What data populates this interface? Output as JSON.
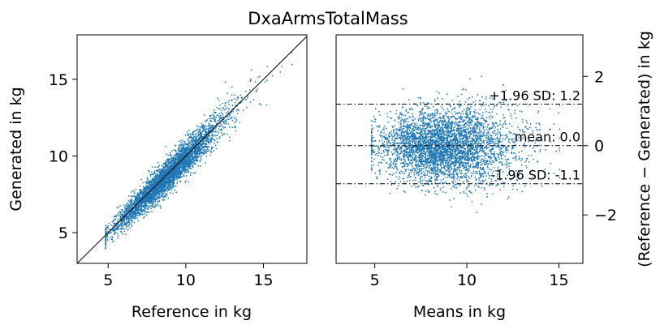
{
  "title": "DxaArmsTotalMass",
  "colors": {
    "points": "#1f77b4",
    "line": "#000000",
    "axis": "#000000"
  },
  "chart_data": [
    {
      "type": "scatter",
      "xlabel": "Reference in kg",
      "ylabel": "Generated in kg",
      "xlim": [
        3,
        17.8
      ],
      "ylim": [
        3,
        17.9
      ],
      "xticks": [
        5,
        10,
        15
      ],
      "yticks": [
        5,
        10,
        15
      ],
      "identity_line": true,
      "point_cloud": {
        "n": 4200,
        "x_mean": 8.6,
        "x_sd": 2.0,
        "x_min": 4.8,
        "x_max": 16.8,
        "resid_sd": 0.55
      }
    },
    {
      "type": "scatter",
      "xlabel": "Means in kg",
      "ylabel": "(Reference − Generated) in kg",
      "xlim": [
        2.9,
        16.3
      ],
      "ylim": [
        -3.4,
        3.2
      ],
      "xticks": [
        5,
        10,
        15
      ],
      "yticks": [
        -2,
        0,
        2
      ],
      "yaxis_side": "right",
      "point_cloud": {
        "n": 4200,
        "x_mean": 8.6,
        "x_sd": 2.0,
        "x_min": 4.8,
        "x_max": 15.0,
        "y_sd": 0.58
      },
      "reference_lines": [
        {
          "y": 1.2,
          "label": "+1.96 SD: 1.2"
        },
        {
          "y": 0.0,
          "label": "mean: 0.0"
        },
        {
          "y": -1.1,
          "label": "-1.96 SD: -1.1"
        }
      ]
    }
  ]
}
